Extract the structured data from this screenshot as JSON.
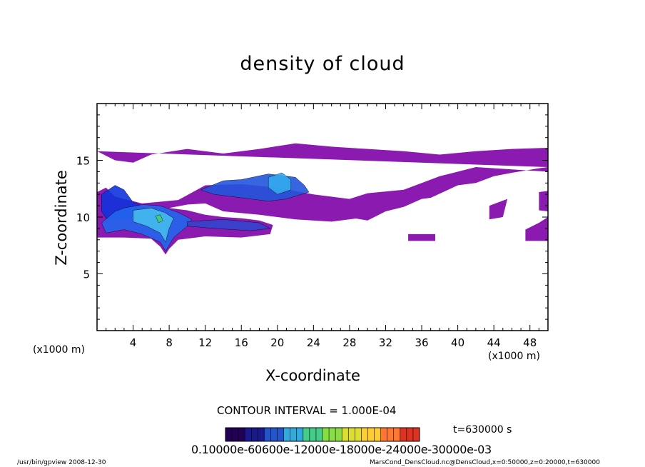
{
  "chart_data": {
    "type": "heatmap",
    "title": "density of cloud",
    "xlabel": "X-coordinate",
    "ylabel": "Z-coordinate",
    "x_unit_label": "(x1000 m)",
    "xlim": [
      0,
      50
    ],
    "ylim": [
      0,
      20
    ],
    "x_ticks": [
      "4",
      "8",
      "12",
      "16",
      "20",
      "24",
      "28",
      "32",
      "36",
      "40",
      "44",
      "48"
    ],
    "y_ticks": [
      "5",
      "10",
      "15"
    ],
    "contour_interval": "CONTOUR INTERVAL = 1.000E-04",
    "time_label": "t=630000 s",
    "colorbar_tick_labels": "0.10000e-60600e-12000e-18000e-24000e-30000e-03",
    "colorbar_range": [
      0.0001,
      0.003
    ],
    "colormap": [
      "#220055",
      "#1a1a8c",
      "#2255cc",
      "#33aadd",
      "#44cc88",
      "#88dd44",
      "#dddd33",
      "#ffcc33",
      "#ff7733",
      "#dd3322"
    ],
    "fill_color": "#8a1ab0",
    "core_color": "#1133dd",
    "cloud_regions": [
      {
        "name": "upper-layer",
        "color": "#8a1ab0",
        "points": [
          [
            0,
            15.8
          ],
          [
            2,
            15.0
          ],
          [
            4,
            14.8
          ],
          [
            6,
            15.5
          ],
          [
            10,
            16.0
          ],
          [
            14,
            15.6
          ],
          [
            18,
            16.0
          ],
          [
            22,
            16.5
          ],
          [
            26,
            16.2
          ],
          [
            30,
            16.0
          ],
          [
            34,
            15.8
          ],
          [
            38,
            15.5
          ],
          [
            42,
            15.8
          ],
          [
            46,
            16.0
          ],
          [
            50,
            16.1
          ],
          [
            50,
            14.0
          ],
          [
            46,
            14.2
          ],
          [
            42,
            14.4
          ],
          [
            38,
            13.6
          ],
          [
            34,
            12.4
          ],
          [
            30,
            12.1
          ],
          [
            28,
            11.6
          ],
          [
            27,
            10.1
          ],
          [
            30,
            9.7
          ],
          [
            32,
            10.5
          ],
          [
            34,
            10.9
          ],
          [
            36,
            11.6
          ],
          [
            37,
            11.7
          ],
          [
            40,
            12.8
          ],
          [
            42,
            13.0
          ],
          [
            44,
            13.6
          ],
          [
            46,
            13.9
          ],
          [
            49,
            14.3
          ],
          [
            50,
            14.4
          ]
        ]
      },
      {
        "name": "middle-band",
        "color": "#8a1ab0",
        "points": [
          [
            0,
            11.6
          ],
          [
            2,
            11.0
          ],
          [
            5,
            11.2
          ],
          [
            9,
            11.5
          ],
          [
            12,
            12.8
          ],
          [
            16,
            12.9
          ],
          [
            20,
            12.6
          ],
          [
            24,
            12.0
          ],
          [
            28,
            11.6
          ],
          [
            30,
            11.4
          ],
          [
            32,
            10.6
          ],
          [
            30,
            10.0
          ],
          [
            26,
            9.6
          ],
          [
            22,
            9.8
          ],
          [
            18,
            10.2
          ],
          [
            14,
            10.5
          ],
          [
            12,
            11.2
          ],
          [
            10,
            11.1
          ],
          [
            8,
            10.8
          ],
          [
            4,
            10.5
          ],
          [
            0,
            10.9
          ]
        ]
      },
      {
        "name": "lower-layer",
        "color": "#8a1ab0",
        "points": [
          [
            0,
            12.2
          ],
          [
            1,
            12.6
          ],
          [
            2,
            11.8
          ],
          [
            4,
            11.4
          ],
          [
            6,
            11.0
          ],
          [
            8,
            10.8
          ],
          [
            10,
            10.6
          ],
          [
            12,
            10.2
          ],
          [
            14,
            10.0
          ],
          [
            16,
            9.9
          ],
          [
            18,
            9.7
          ],
          [
            19.5,
            9.3
          ],
          [
            19.2,
            8.5
          ],
          [
            16,
            8.2
          ],
          [
            12,
            8.3
          ],
          [
            9,
            8.0
          ],
          [
            8,
            7.2
          ],
          [
            7.6,
            6.7
          ],
          [
            7.0,
            7.4
          ],
          [
            6,
            8.1
          ],
          [
            3,
            8.2
          ],
          [
            0,
            8.2
          ]
        ]
      },
      {
        "name": "right-patch-a",
        "color": "#8a1ab0",
        "points": [
          [
            34.5,
            8.5
          ],
          [
            37.5,
            8.5
          ],
          [
            37.5,
            7.9
          ],
          [
            34.5,
            7.9
          ]
        ]
      },
      {
        "name": "right-patch-b",
        "color": "#8a1ab0",
        "points": [
          [
            43.5,
            11.0
          ],
          [
            45.5,
            11.6
          ],
          [
            45.0,
            10.0
          ],
          [
            43.5,
            9.8
          ]
        ]
      },
      {
        "name": "right-edge",
        "color": "#8a1ab0",
        "points": [
          [
            47.5,
            8.9
          ],
          [
            49,
            9.5
          ],
          [
            50,
            10.0
          ],
          [
            50,
            7.9
          ],
          [
            47.5,
            7.9
          ]
        ]
      },
      {
        "name": "right-edge-upper",
        "color": "#8a1ab0",
        "points": [
          [
            49,
            12.2
          ],
          [
            50,
            12.3
          ],
          [
            50,
            10.5
          ],
          [
            49,
            10.6
          ]
        ]
      }
    ],
    "cores": [
      {
        "name": "core-left",
        "color": "#1133dd",
        "points": [
          [
            0.5,
            12.0
          ],
          [
            2,
            12.8
          ],
          [
            3,
            12.4
          ],
          [
            4,
            11.3
          ],
          [
            5,
            11.0
          ],
          [
            4,
            10.0
          ],
          [
            3,
            9.8
          ],
          [
            1,
            9.9
          ],
          [
            0.5,
            10.5
          ]
        ]
      },
      {
        "name": "core-mid-left",
        "color": "#2266ee",
        "points": [
          [
            3,
            10.8
          ],
          [
            5,
            11.1
          ],
          [
            7,
            11.0
          ],
          [
            9,
            10.4
          ],
          [
            10.5,
            9.8
          ],
          [
            10,
            9.2
          ],
          [
            8.5,
            8.2
          ],
          [
            7.6,
            7.0
          ],
          [
            7.0,
            7.8
          ],
          [
            5,
            8.5
          ],
          [
            3,
            8.9
          ],
          [
            1,
            8.6
          ],
          [
            0.5,
            9.5
          ],
          [
            2,
            10.5
          ]
        ]
      },
      {
        "name": "core-center",
        "color": "#2255dd",
        "points": [
          [
            11.5,
            12.4
          ],
          [
            14,
            13.2
          ],
          [
            16,
            13.3
          ],
          [
            19,
            13.8
          ],
          [
            22,
            13.5
          ],
          [
            23,
            12.8
          ],
          [
            23.5,
            12.2
          ],
          [
            21,
            11.6
          ],
          [
            19,
            11.4
          ],
          [
            17,
            11.6
          ],
          [
            15,
            11.8
          ],
          [
            13,
            12.0
          ]
        ]
      },
      {
        "name": "core-center-bright",
        "color": "#33aaee",
        "points": [
          [
            19,
            13.5
          ],
          [
            20.5,
            13.9
          ],
          [
            21.5,
            13.3
          ],
          [
            21.5,
            12.4
          ],
          [
            20,
            12.0
          ],
          [
            19,
            12.6
          ]
        ]
      },
      {
        "name": "core-left-bright",
        "color": "#44bbee",
        "points": [
          [
            4,
            10.6
          ],
          [
            6,
            10.8
          ],
          [
            7.5,
            10.4
          ],
          [
            8.5,
            9.9
          ],
          [
            8,
            9.0
          ],
          [
            7.6,
            7.8
          ],
          [
            7,
            8.6
          ],
          [
            5.5,
            9.2
          ],
          [
            4,
            9.6
          ]
        ]
      },
      {
        "name": "core-left-green",
        "color": "#44cc77",
        "points": [
          [
            6.5,
            10.1
          ],
          [
            7.0,
            10.2
          ],
          [
            7.3,
            9.7
          ],
          [
            6.8,
            9.5
          ]
        ]
      },
      {
        "name": "core-band-right",
        "color": "#3344cc",
        "points": [
          [
            10,
            9.6
          ],
          [
            14,
            9.8
          ],
          [
            18,
            9.5
          ],
          [
            19.2,
            9.0
          ],
          [
            17,
            8.8
          ],
          [
            13,
            9.0
          ],
          [
            10,
            9.2
          ]
        ]
      }
    ]
  },
  "footer": {
    "left": "/usr/bin/gpview   2008-12-30",
    "right": "MarsCond_DensCloud.nc@DensCloud,x=0:50000,z=0:20000,t=630000"
  }
}
